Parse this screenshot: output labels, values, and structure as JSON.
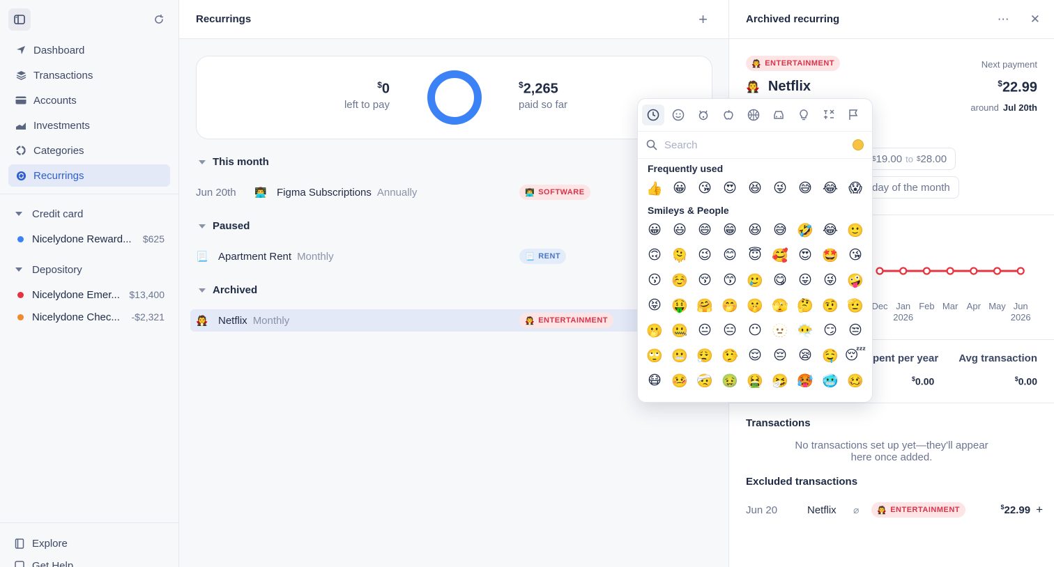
{
  "sidebar": {
    "nav": [
      {
        "label": "Dashboard",
        "icon": "navigation-icon"
      },
      {
        "label": "Transactions",
        "icon": "layers-icon"
      },
      {
        "label": "Accounts",
        "icon": "card-icon"
      },
      {
        "label": "Investments",
        "icon": "chart-icon"
      },
      {
        "label": "Categories",
        "icon": "categories-icon"
      },
      {
        "label": "Recurrings",
        "icon": "recurring-icon"
      }
    ],
    "groups": [
      {
        "title": "Credit card",
        "accounts": [
          {
            "name": "Nicelydone Reward...",
            "amount": "$625",
            "color": "#3b82f6"
          }
        ]
      },
      {
        "title": "Depository",
        "accounts": [
          {
            "name": "Nicelydone Emer...",
            "amount": "$13,400",
            "color": "#e5343f"
          },
          {
            "name": "Nicelydone Chec...",
            "amount": "-$2,321",
            "color": "#f08a2b"
          }
        ]
      }
    ],
    "bottom": [
      {
        "label": "Explore"
      },
      {
        "label": "Get Help"
      }
    ]
  },
  "middle": {
    "title": "Recurrings",
    "summary": {
      "left_amount": "0",
      "left_label": "left to pay",
      "right_amount": "2,265",
      "right_label": "paid so far",
      "currency": "$"
    },
    "sections": {
      "this_month": "This month",
      "paused": "Paused",
      "archived": "Archived"
    },
    "rows": {
      "figma": {
        "date": "Jun 20th",
        "emoji": "👨‍💻",
        "name": "Figma Subscriptions",
        "freq": "Annually",
        "tag": "SOFTWARE",
        "tag_emoji": "👨‍💻"
      },
      "rent": {
        "emoji": "📃",
        "name": "Apartment Rent",
        "freq": "Monthly",
        "tag": "RENT",
        "tag_emoji": "📃"
      },
      "netflix": {
        "emoji": "🧛",
        "name": "Netflix",
        "freq": "Monthly",
        "tag": "ENTERTAINMENT",
        "tag_emoji": "🧛"
      }
    }
  },
  "detail": {
    "title": "Archived recurring",
    "tag": "ENTERTAINMENT",
    "tag_emoji": "🧛",
    "next_label": "Next payment",
    "name": "Netflix",
    "name_emoji": "🧛",
    "price": "22.99",
    "currency": "$",
    "around_label": "around",
    "around_date": "Jul 20th",
    "range_from": "19.00",
    "range_to_label": "to",
    "range_to": "28.00",
    "day_label": "day of the month",
    "months": [
      {
        "m": "Dec",
        "y": ""
      },
      {
        "m": "Jan",
        "y": "2026"
      },
      {
        "m": "Feb",
        "y": ""
      },
      {
        "m": "Mar",
        "y": ""
      },
      {
        "m": "Apr",
        "y": ""
      },
      {
        "m": "May",
        "y": ""
      },
      {
        "m": "Jun",
        "y": "2026"
      }
    ],
    "stats": {
      "spent_label": "pent per year",
      "spent_value": "0.00",
      "avg_label": "Avg transaction",
      "avg_value": "0.00"
    },
    "transactions_title": "Transactions",
    "empty_text": "No transactions set up yet—they'll appear here once added.",
    "excluded_title": "Excluded transactions",
    "excluded": {
      "date": "Jun 20",
      "name": "Netflix",
      "tag": "ENTERTAINMENT",
      "tag_emoji": "🧛",
      "amount": "22.99",
      "plus": "+"
    }
  },
  "picker": {
    "search_placeholder": "Search",
    "categories": [
      "clock-icon",
      "smiley-icon",
      "animal-icon",
      "food-icon",
      "ball-icon",
      "car-icon",
      "bulb-icon",
      "symbols-icon",
      "flag-icon"
    ],
    "frequently_used_label": "Frequently used",
    "frequently_used": [
      "👍",
      "😀",
      "😘",
      "😍",
      "😆",
      "😜",
      "😅",
      "😂",
      "😱"
    ],
    "smileys_label": "Smileys & People",
    "smileys": [
      "😀",
      "😃",
      "😄",
      "😁",
      "😆",
      "😅",
      "🤣",
      "😂",
      "🙂",
      "🙃",
      "🫠",
      "😉",
      "😊",
      "😇",
      "🥰",
      "😍",
      "🤩",
      "😘",
      "😗",
      "☺️",
      "😚",
      "😙",
      "🥲",
      "😋",
      "😛",
      "😜",
      "🤪",
      "😝",
      "🤑",
      "🤗",
      "🤭",
      "🤫",
      "🫣",
      "🤔",
      "🤨",
      "🫡",
      "🫢",
      "🤐",
      "😐",
      "😑",
      "😶",
      "🫥",
      "😶‍🌫️",
      "😏",
      "😒",
      "🙄",
      "😬",
      "😮‍💨",
      "🤥",
      "😌",
      "😔",
      "😪",
      "🤤",
      "😴",
      "😷",
      "🤒",
      "🤕",
      "🤢",
      "🤮",
      "🤧",
      "🥵",
      "🥶",
      "🥴"
    ]
  }
}
